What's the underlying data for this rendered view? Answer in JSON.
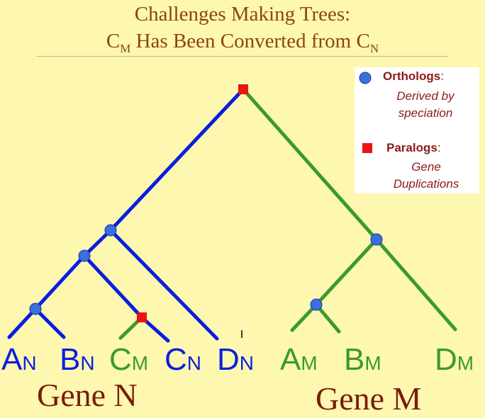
{
  "title": {
    "line1": "Challenges Making Trees:",
    "line2_parts": [
      "C",
      "M",
      " Has Been Converted from C",
      "N"
    ]
  },
  "legend": {
    "orthologs": {
      "label": "Orthologs",
      "suffix": ":",
      "desc_line1": "Derived by",
      "desc_line2": "speciation"
    },
    "paralogs": {
      "label": "Paralogs",
      "suffix": ":",
      "desc_line1": "Gene",
      "desc_line2": "Duplications"
    }
  },
  "colors": {
    "gene_n": "#0a1ee0",
    "gene_m": "#3b9a2c",
    "ortholog": "#3b6fe0",
    "paralog": "#ee1111"
  },
  "leaves": [
    {
      "letter": "A",
      "sub": "N",
      "gene": "N"
    },
    {
      "letter": "B",
      "sub": "N",
      "gene": "N"
    },
    {
      "letter": "C",
      "sub": "M",
      "gene": "M"
    },
    {
      "letter": "C",
      "sub": "N",
      "gene": "N"
    },
    {
      "letter": "D",
      "sub": "N",
      "gene": "N"
    },
    {
      "letter": "A",
      "sub": "M",
      "gene": "M"
    },
    {
      "letter": "B",
      "sub": "M",
      "gene": "M"
    },
    {
      "letter": "D",
      "sub": "M",
      "gene": "M"
    }
  ],
  "gene_labels": {
    "n": "Gene N",
    "m": "Gene M"
  }
}
